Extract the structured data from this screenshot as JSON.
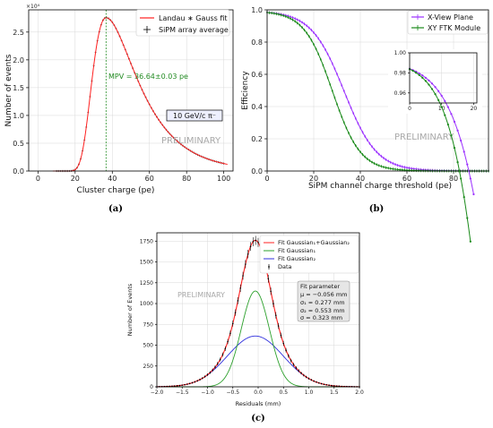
{
  "chart_data": [
    {
      "id": "a",
      "type": "scatter",
      "caption": "(a)",
      "xlabel": "Cluster charge (pe)",
      "ylabel": "Number of events",
      "xlim": [
        -5,
        105
      ],
      "ylim": [
        0,
        29000
      ],
      "xticks": [
        0,
        20,
        40,
        60,
        80,
        100
      ],
      "yticks": [
        0,
        5000,
        10000,
        15000,
        20000,
        25000
      ],
      "ytick_labels": [
        "0.0",
        "0.5",
        "1.0",
        "1.5",
        "2.0",
        "2.5"
      ],
      "y_multiplier": "×10⁴",
      "grid": true,
      "legend_position": "top-right",
      "series": [
        {
          "name": "Landau ∗ Gauss fit",
          "kind": "line",
          "color": "#ff2020",
          "mpv": 36.64,
          "peak": 27600,
          "width_left": 6.5,
          "width_right": 9.0
        },
        {
          "name": "SiPM array average",
          "kind": "errorbar",
          "color": "#000000",
          "x_start": 10,
          "x_end": 100,
          "x_step": 1
        }
      ],
      "annotations": [
        {
          "text": "MPV = 36.64±0.03 pe",
          "color": "#228b22",
          "x": 36.64
        },
        {
          "text": "10 GeV/c π⁻",
          "boxed": true
        },
        {
          "text": "PRELIMINARY"
        }
      ]
    },
    {
      "id": "b",
      "type": "line",
      "caption": "(b)",
      "xlabel": "SiPM channel charge threshold (pe)",
      "ylabel": "Efficiency",
      "xlim": [
        0,
        95
      ],
      "ylim": [
        0,
        1.0
      ],
      "xticks": [
        0,
        20,
        40,
        60,
        80
      ],
      "yticks": [
        0.0,
        0.2,
        0.4,
        0.6,
        0.8,
        1.0
      ],
      "ytick_labels": [
        "0.0",
        "0.2",
        "0.4",
        "0.6",
        "0.8",
        "1.0"
      ],
      "grid": true,
      "legend_position": "top-right",
      "series": [
        {
          "name": "X-View Plane",
          "color": "#9b30ff",
          "threshold_50": 33,
          "slope": 7.0,
          "plateau": 0.993
        },
        {
          "name": "XY FTK Module",
          "color": "#1a8a1a",
          "threshold_50": 28,
          "slope": 6.0,
          "plateau": 0.993
        }
      ],
      "inset": {
        "xlim": [
          0,
          21
        ],
        "ylim": [
          0.95,
          1.0
        ],
        "xticks": [
          0,
          10,
          20
        ],
        "yticks": [
          0.96,
          0.98,
          1.0
        ],
        "ytick_labels": [
          "0.96",
          "0.98",
          "1.00"
        ]
      },
      "annotations": [
        {
          "text": "PRELIMINARY"
        }
      ]
    },
    {
      "id": "c",
      "type": "line",
      "caption": "(c)",
      "xlabel": "Residuals (mm)",
      "ylabel": "Number of Events",
      "xlim": [
        -2.0,
        2.0
      ],
      "ylim": [
        0,
        1850
      ],
      "xticks": [
        -2.0,
        -1.5,
        -1.0,
        -0.5,
        0.0,
        0.5,
        1.0,
        1.5,
        2.0
      ],
      "xtick_labels": [
        "−2.0",
        "−1.5",
        "−1.0",
        "−0.5",
        "0.0",
        "0.5",
        "1.0",
        "1.5",
        "2.0"
      ],
      "yticks": [
        0,
        250,
        500,
        750,
        1000,
        1250,
        1500,
        1750
      ],
      "grid": true,
      "legend_position": "top-right",
      "series": [
        {
          "name": "Fit Gaussian₁+Gaussian₂",
          "color": "#ff2020",
          "kind": "sum"
        },
        {
          "name": "Fit Gaussian₁",
          "color": "#2ca02c",
          "amplitude": 1150,
          "mu": -0.056,
          "sigma": 0.277
        },
        {
          "name": "Fit Gaussian₂",
          "color": "#3030dd",
          "amplitude": 610,
          "mu": -0.056,
          "sigma": 0.553
        },
        {
          "name": "Data",
          "kind": "errorbar",
          "color": "#000000",
          "x_step": 0.05
        }
      ],
      "fit_box": {
        "title": "Fit parameter",
        "lines": [
          "μ = −0.056 mm",
          "σ₁ = 0.277 mm",
          "σ₂ = 0.553 mm",
          "σ = 0.323 mm"
        ]
      },
      "annotations": [
        {
          "text": "PRELIMINARY"
        }
      ]
    }
  ]
}
